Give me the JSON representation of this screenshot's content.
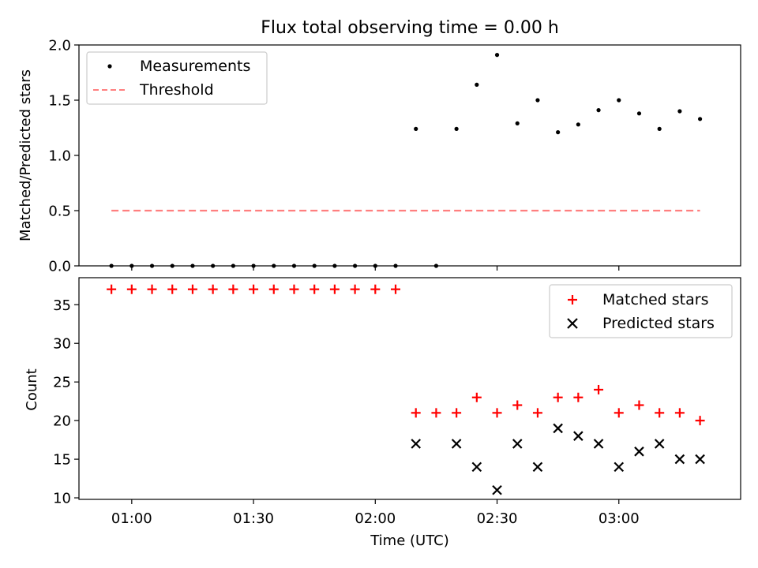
{
  "chart_data": [
    {
      "type": "scatter",
      "title": "Flux total observing time = 0.00 h",
      "xlabel": "",
      "ylabel": "Matched/Predicted stars",
      "ylim": [
        0.0,
        2.0
      ],
      "yticks": [
        "0.0",
        "0.5",
        "1.0",
        "1.5",
        "2.0"
      ],
      "legend_position": "upper-left",
      "series": [
        {
          "name": "Measurements",
          "marker": "dot",
          "color": "#000000",
          "x": [
            "00:55",
            "01:00",
            "01:05",
            "01:10",
            "01:15",
            "01:20",
            "01:25",
            "01:30",
            "01:35",
            "01:40",
            "01:45",
            "01:50",
            "01:55",
            "02:00",
            "02:05",
            "02:10",
            "02:15",
            "02:20",
            "02:25",
            "02:30",
            "02:35",
            "02:40",
            "02:45",
            "02:50",
            "02:55",
            "03:00",
            "03:05",
            "03:10",
            "03:15",
            "03:20"
          ],
          "y": [
            0,
            0,
            0,
            0,
            0,
            0,
            0,
            0,
            0,
            0,
            0,
            0,
            0,
            0,
            0,
            1.24,
            0,
            1.24,
            1.64,
            1.91,
            1.29,
            1.5,
            1.21,
            1.28,
            1.41,
            1.5,
            1.38,
            1.24,
            1.4,
            1.33
          ]
        },
        {
          "name": "Threshold",
          "style": "dashed",
          "color": "#ff7f7f",
          "x": [
            "00:55",
            "03:20"
          ],
          "y": [
            0.5,
            0.5
          ]
        }
      ]
    },
    {
      "type": "scatter",
      "xlabel": "Time (UTC)",
      "ylabel": "Count",
      "ylim": [
        9.8,
        38.5
      ],
      "yticks": [
        "10",
        "15",
        "20",
        "25",
        "30",
        "35"
      ],
      "xticks": [
        "01:00",
        "01:30",
        "02:00",
        "02:30",
        "03:00"
      ],
      "xlim": [
        "00:47",
        "03:30"
      ],
      "legend_position": "upper-right",
      "series": [
        {
          "name": "Matched stars",
          "marker": "plus",
          "color": "#ff0000",
          "x": [
            "00:55",
            "01:00",
            "01:05",
            "01:10",
            "01:15",
            "01:20",
            "01:25",
            "01:30",
            "01:35",
            "01:40",
            "01:45",
            "01:50",
            "01:55",
            "02:00",
            "02:05",
            "02:10",
            "02:15",
            "02:20",
            "02:25",
            "02:30",
            "02:35",
            "02:40",
            "02:45",
            "02:50",
            "02:55",
            "03:00",
            "03:05",
            "03:10",
            "03:15",
            "03:20"
          ],
          "y": [
            37,
            37,
            37,
            37,
            37,
            37,
            37,
            37,
            37,
            37,
            37,
            37,
            37,
            37,
            37,
            21,
            21,
            21,
            23,
            21,
            22,
            21,
            23,
            23,
            24,
            21,
            22,
            21,
            21,
            20
          ]
        },
        {
          "name": "Predicted stars",
          "marker": "x",
          "color": "#000000",
          "x": [
            "02:10",
            "02:20",
            "02:25",
            "02:30",
            "02:35",
            "02:40",
            "02:45",
            "02:50",
            "02:55",
            "03:00",
            "03:05",
            "03:10",
            "03:15",
            "03:20"
          ],
          "y": [
            17,
            17,
            14,
            11,
            17,
            14,
            19,
            18,
            17,
            14,
            16,
            17,
            15,
            15
          ]
        }
      ]
    }
  ]
}
